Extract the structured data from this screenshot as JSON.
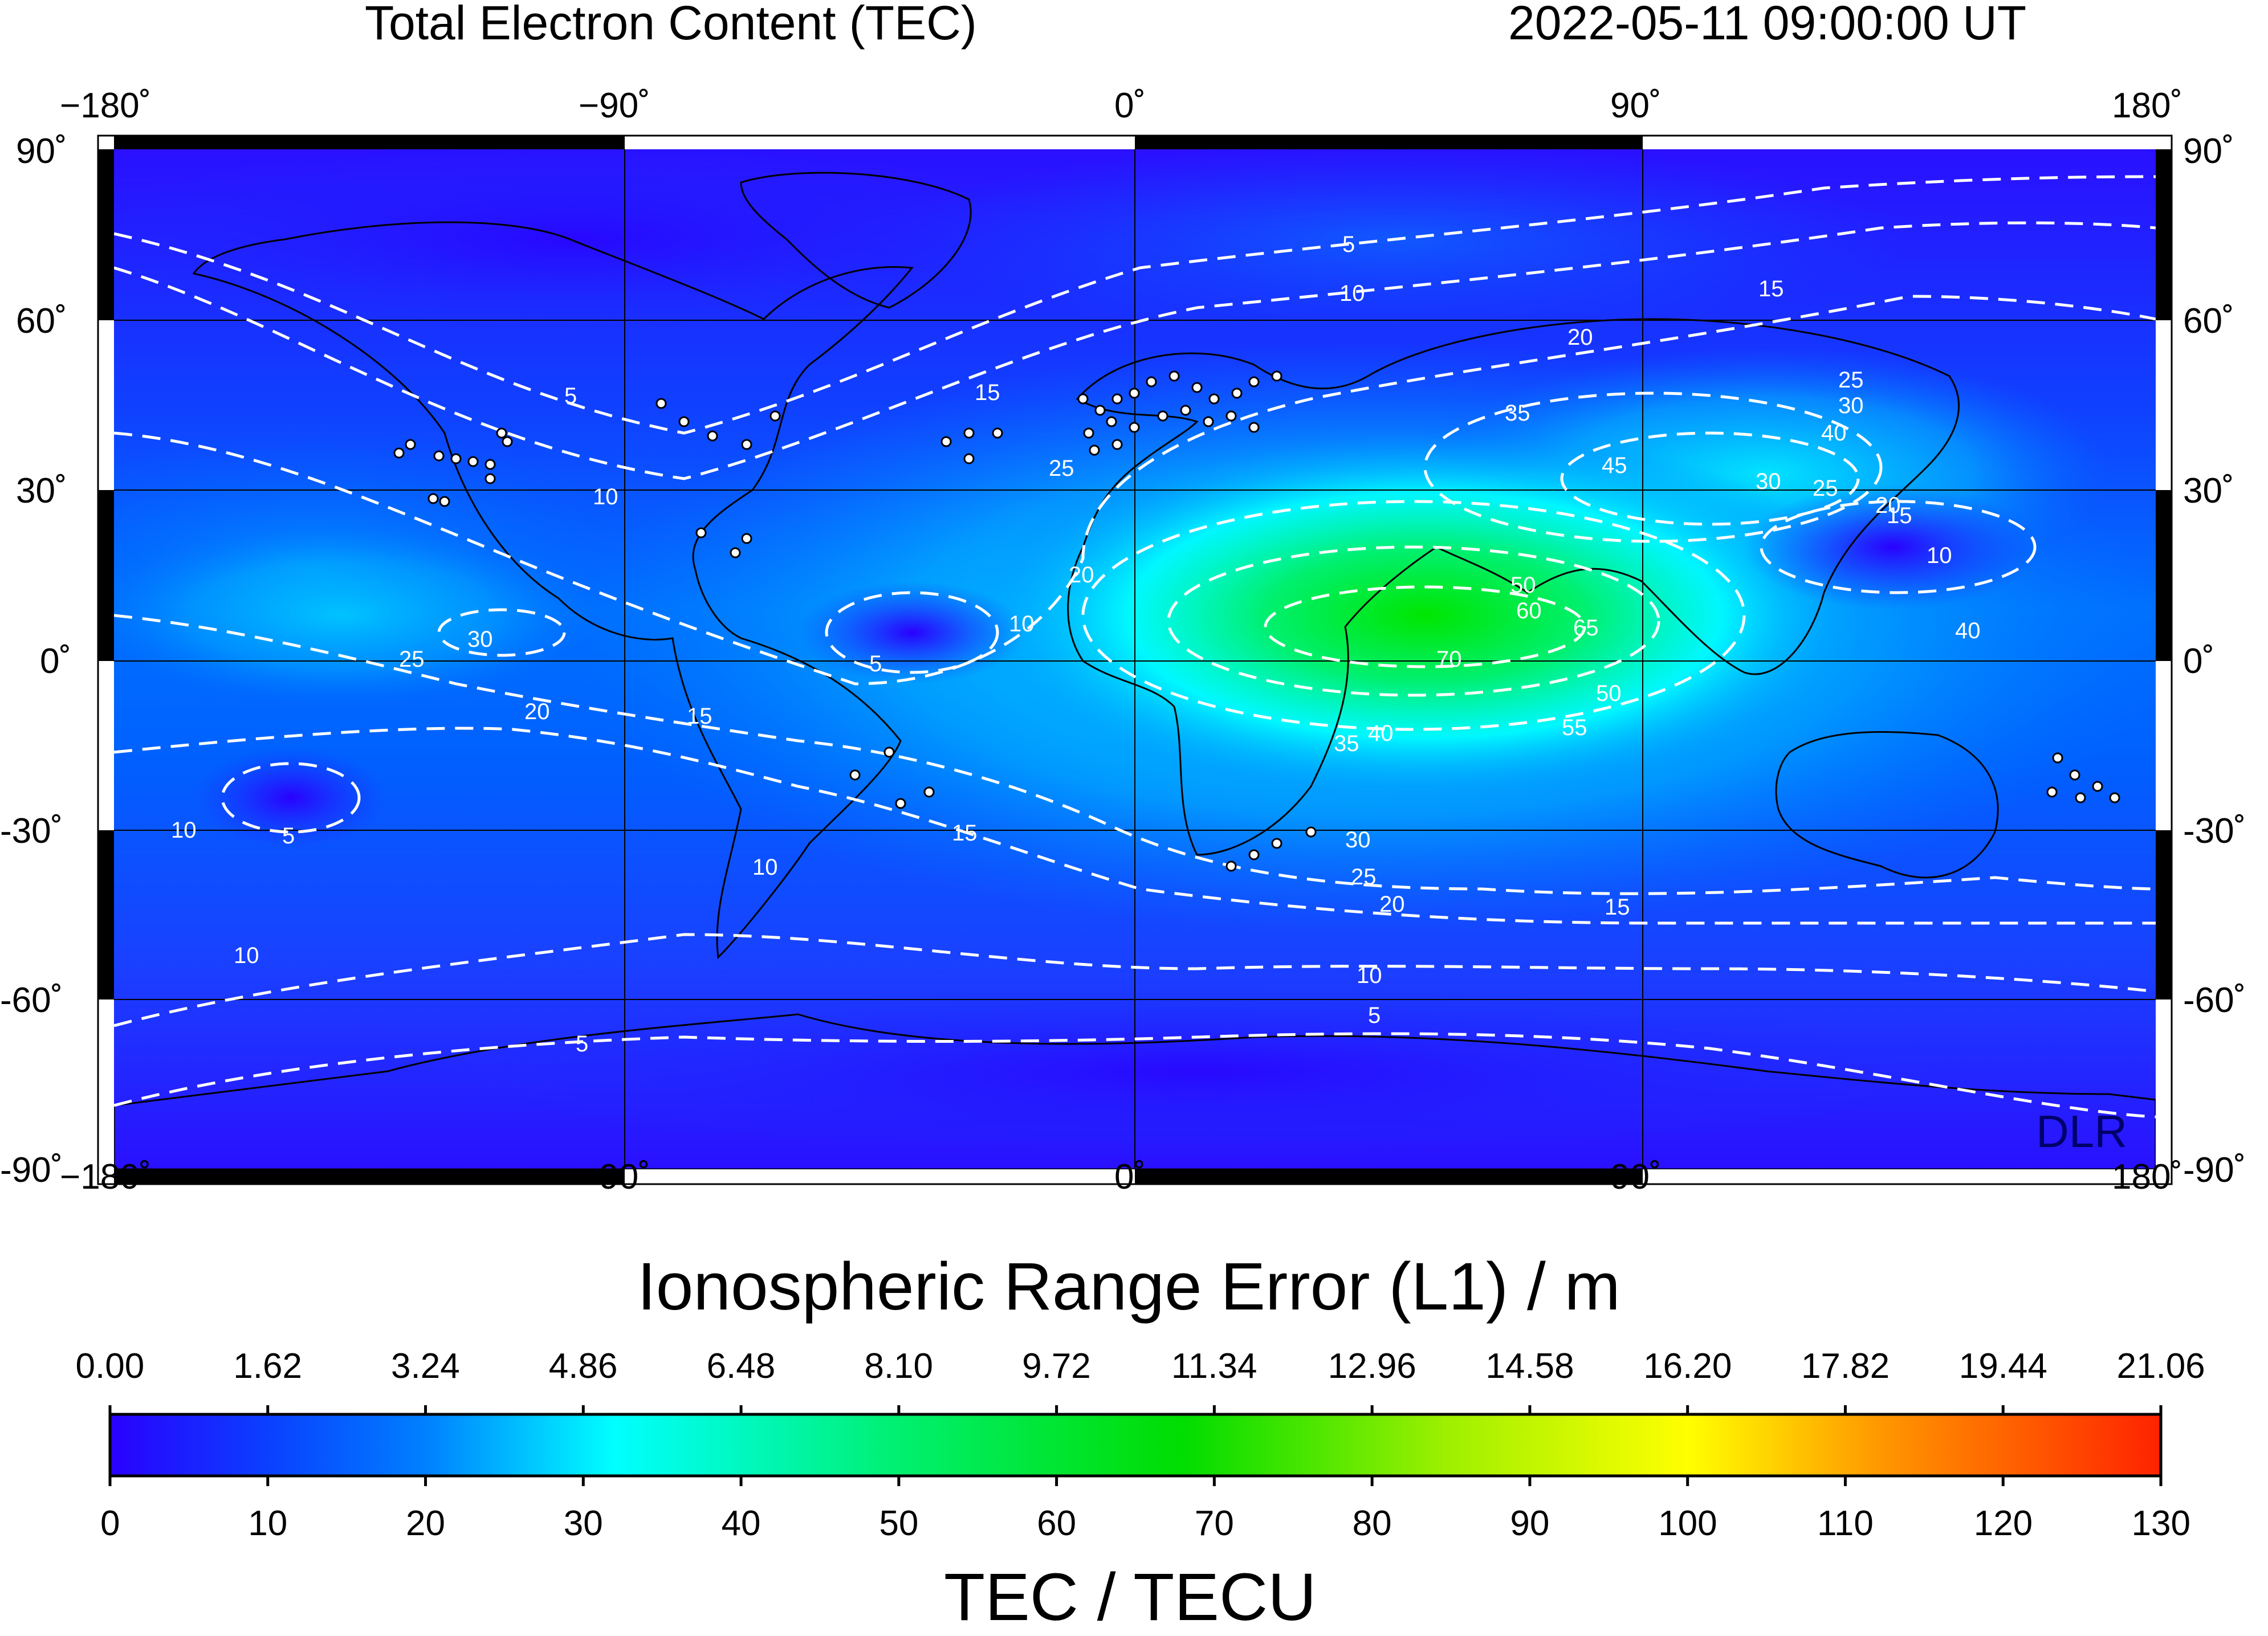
{
  "header": {
    "title": "Total Electron Content (TEC)",
    "timestamp": "2022-05-11  09:00:00 UT"
  },
  "map": {
    "lon_labels": [
      "−180˚",
      "−90˚",
      "0˚",
      "90˚",
      "180˚"
    ],
    "lat_labels": [
      "90˚",
      "60˚",
      "30˚",
      "0˚",
      "-30˚",
      "-60˚",
      "-90˚"
    ],
    "watermark": "DLR",
    "contour_labels": [
      "5",
      "10",
      "15",
      "20",
      "25",
      "30",
      "35",
      "40",
      "45",
      "50",
      "55",
      "60",
      "65",
      "70"
    ],
    "colors": {
      "low": "#2200ff",
      "mid_low": "#0a5cff",
      "cyan": "#00ffff",
      "green": "#00ee00",
      "yellow": "#ffff00",
      "high": "#ff2a00",
      "station_marker": "#ffffff",
      "contour": "#ffffff"
    }
  },
  "colorbar": {
    "top_label": "Ionospheric Range Error (L1) / m",
    "top_ticks": [
      "0.00",
      "1.62",
      "3.24",
      "4.86",
      "6.48",
      "8.10",
      "9.72",
      "11.34",
      "12.96",
      "14.58",
      "16.20",
      "17.82",
      "19.44",
      "21.06"
    ],
    "bottom_ticks": [
      "0",
      "10",
      "20",
      "30",
      "40",
      "50",
      "60",
      "70",
      "80",
      "90",
      "100",
      "110",
      "120",
      "130"
    ],
    "bottom_label": "TEC / TECU",
    "range": [
      0,
      130
    ],
    "gradient": [
      {
        "v": 0,
        "c": "#2a00ff"
      },
      {
        "v": 10,
        "c": "#0a40ff"
      },
      {
        "v": 20,
        "c": "#0080ff"
      },
      {
        "v": 32,
        "c": "#00ffff"
      },
      {
        "v": 50,
        "c": "#00f070"
      },
      {
        "v": 68,
        "c": "#00dd00"
      },
      {
        "v": 85,
        "c": "#a0f000"
      },
      {
        "v": 100,
        "c": "#ffff00"
      },
      {
        "v": 112,
        "c": "#ff9900"
      },
      {
        "v": 130,
        "c": "#ff2200"
      }
    ]
  }
}
